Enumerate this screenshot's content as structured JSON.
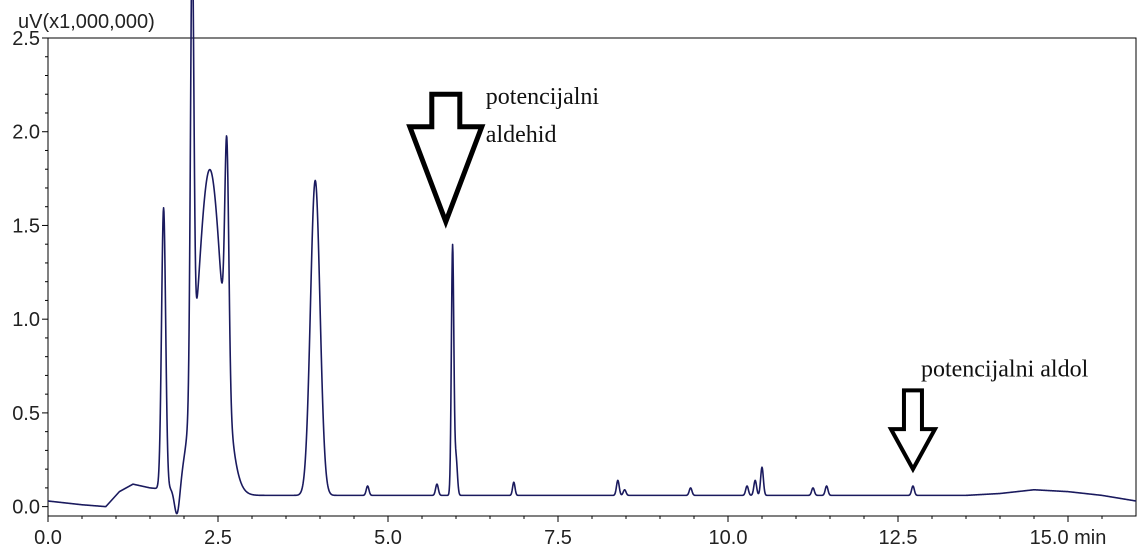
{
  "chart_data": {
    "type": "line",
    "ylabel": "uV(x1,000,000)",
    "xunit": "min",
    "xlim": [
      0,
      16.0
    ],
    "ylim": [
      -0.05,
      2.5
    ],
    "xticks": [
      0.0,
      2.5,
      5.0,
      7.5,
      10.0,
      12.5,
      15.0
    ],
    "xtick_labels": [
      "0.0",
      "2.5",
      "5.0",
      "7.5",
      "10.0",
      "12.5",
      "15.0 min"
    ],
    "yticks": [
      0.0,
      0.5,
      1.0,
      1.5,
      2.0,
      2.5
    ],
    "ytick_labels": [
      "0.0",
      "0.5",
      "1.0",
      "1.5",
      "2.0",
      "2.5"
    ],
    "grid": false,
    "colors": {
      "trace": "#1a1a5e",
      "axis": "#000000"
    },
    "baseline": [
      [
        0.0,
        0.03
      ],
      [
        0.5,
        0.01
      ],
      [
        0.85,
        0.0
      ],
      [
        1.05,
        0.08
      ],
      [
        1.25,
        0.12
      ],
      [
        1.5,
        0.1
      ],
      [
        2.6,
        0.06
      ],
      [
        12.5,
        0.06
      ],
      [
        13.5,
        0.06
      ],
      [
        14.0,
        0.07
      ],
      [
        14.5,
        0.09
      ],
      [
        15.0,
        0.08
      ],
      [
        15.5,
        0.06
      ],
      [
        16.0,
        0.03
      ]
    ],
    "peaks": [
      {
        "x": 1.7,
        "height": 1.5,
        "width": 0.03
      },
      {
        "x": 1.9,
        "height": -0.17,
        "width": 0.04
      },
      {
        "x": 2.12,
        "height": 2.35,
        "width": 0.025
      },
      {
        "x": 2.38,
        "height": 1.73,
        "width": 0.18
      },
      {
        "x": 2.63,
        "height": 1.25,
        "width": 0.03
      },
      {
        "x": 3.93,
        "height": 1.68,
        "width": 0.07
      },
      {
        "x": 4.7,
        "height": 0.05,
        "width": 0.02
      },
      {
        "x": 5.72,
        "height": 0.06,
        "width": 0.02
      },
      {
        "x": 5.95,
        "height": 1.33,
        "width": 0.018
      },
      {
        "x": 6.0,
        "height": 0.2,
        "width": 0.02
      },
      {
        "x": 6.85,
        "height": 0.07,
        "width": 0.018
      },
      {
        "x": 8.38,
        "height": 0.08,
        "width": 0.02
      },
      {
        "x": 8.48,
        "height": 0.03,
        "width": 0.02
      },
      {
        "x": 9.45,
        "height": 0.04,
        "width": 0.02
      },
      {
        "x": 10.28,
        "height": 0.05,
        "width": 0.02
      },
      {
        "x": 10.4,
        "height": 0.08,
        "width": 0.02
      },
      {
        "x": 10.5,
        "height": 0.15,
        "width": 0.02
      },
      {
        "x": 11.25,
        "height": 0.04,
        "width": 0.02
      },
      {
        "x": 11.45,
        "height": 0.05,
        "width": 0.02
      },
      {
        "x": 12.72,
        "height": 0.05,
        "width": 0.02
      }
    ],
    "annotations": [
      {
        "lines": [
          "potencijalni",
          "aldehid"
        ],
        "x": 5.85,
        "y_tip": 1.52,
        "y_top": 2.2,
        "size": "large"
      },
      {
        "lines": [
          "potencijalni aldol"
        ],
        "x": 12.72,
        "y_tip": 0.2,
        "y_top": 0.62,
        "size": "small"
      }
    ]
  }
}
